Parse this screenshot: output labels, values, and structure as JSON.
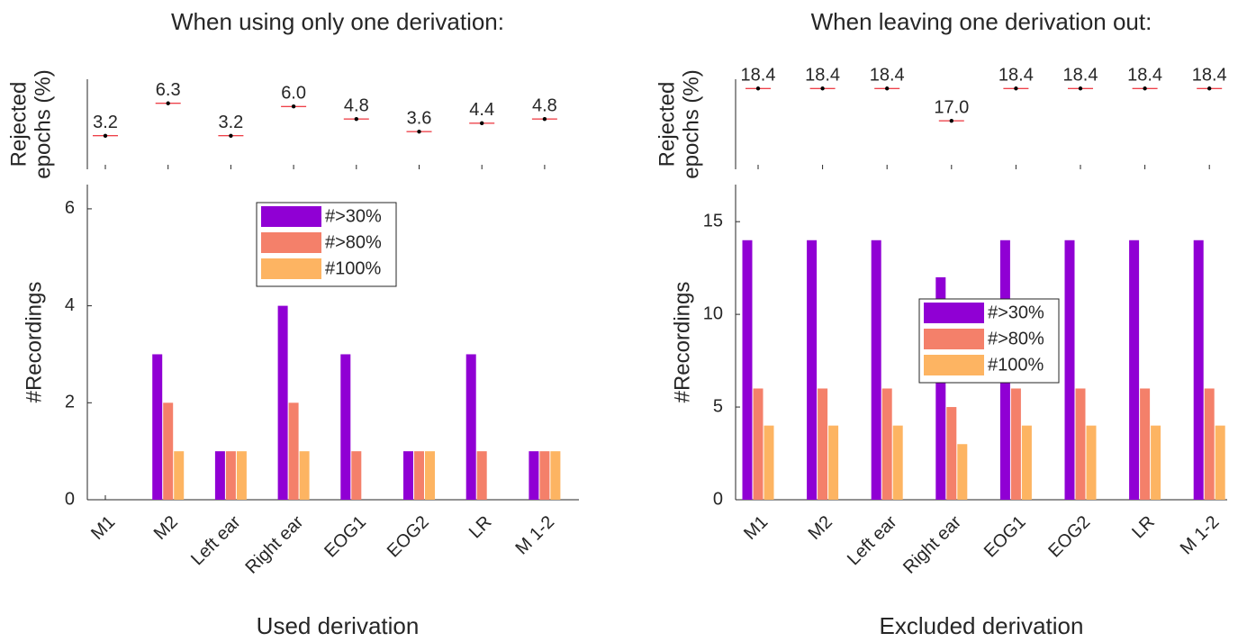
{
  "chart_data": [
    {
      "type": "dot",
      "title": "When using only one derivation:",
      "y_label": [
        "Rejected",
        "epochs (%)"
      ],
      "values": [
        3.2,
        6.3,
        3.2,
        6.0,
        4.8,
        3.6,
        4.4,
        4.8
      ],
      "value_labels": [
        "3.2",
        "6.3",
        "3.2",
        "6.0",
        "4.8",
        "3.6",
        "4.4",
        "4.8"
      ],
      "ylim": [
        0,
        8.6
      ],
      "color": "#e8000b"
    },
    {
      "type": "bar",
      "x_label": "Used derivation",
      "y_label": "#Recordings",
      "categories": [
        "M1",
        "M2",
        "Left ear",
        "Right ear",
        "EOG1",
        "EOG2",
        "LR",
        "M 1-2"
      ],
      "series": [
        {
          "name": "#>30%",
          "color": "#9000d4",
          "values": [
            0,
            3,
            1,
            4,
            3,
            1,
            3,
            1
          ]
        },
        {
          "name": "#>80%",
          "color": "#f4806a",
          "values": [
            0,
            2,
            1,
            2,
            1,
            1,
            1,
            1
          ]
        },
        {
          "name": "#100%",
          "color": "#fdb462",
          "values": [
            0,
            1,
            1,
            1,
            0,
            1,
            0,
            1
          ]
        }
      ],
      "ylim": [
        0,
        6.5
      ],
      "yticks": [
        0,
        2,
        4,
        6
      ],
      "legend": "top"
    },
    {
      "type": "dot",
      "title": "When leaving one derivation out:",
      "y_label": [
        "Rejected",
        "epochs (%)"
      ],
      "values": [
        18.4,
        18.4,
        18.4,
        17.0,
        18.4,
        18.4,
        18.4,
        18.4
      ],
      "value_labels": [
        "18.4",
        "18.4",
        "18.4",
        "17.0",
        "18.4",
        "18.4",
        "18.4",
        "18.4"
      ],
      "ylim": [
        14.9,
        18.8
      ],
      "color": "#e8000b"
    },
    {
      "type": "bar",
      "x_label": "Excluded derivation",
      "y_label": "#Recordings",
      "categories": [
        "M1",
        "M2",
        "Left ear",
        "Right ear",
        "EOG1",
        "EOG2",
        "LR",
        "M 1-2"
      ],
      "series": [
        {
          "name": "#>30%",
          "color": "#9000d4",
          "values": [
            14,
            14,
            14,
            12,
            14,
            14,
            14,
            14
          ]
        },
        {
          "name": "#>80%",
          "color": "#f4806a",
          "values": [
            6,
            6,
            6,
            5,
            6,
            6,
            6,
            6
          ]
        },
        {
          "name": "#100%",
          "color": "#fdb462",
          "values": [
            4,
            4,
            4,
            3,
            4,
            4,
            4,
            4
          ]
        }
      ],
      "ylim": [
        0,
        17
      ],
      "yticks": [
        0,
        5,
        10,
        15
      ],
      "legend": "middle"
    }
  ]
}
